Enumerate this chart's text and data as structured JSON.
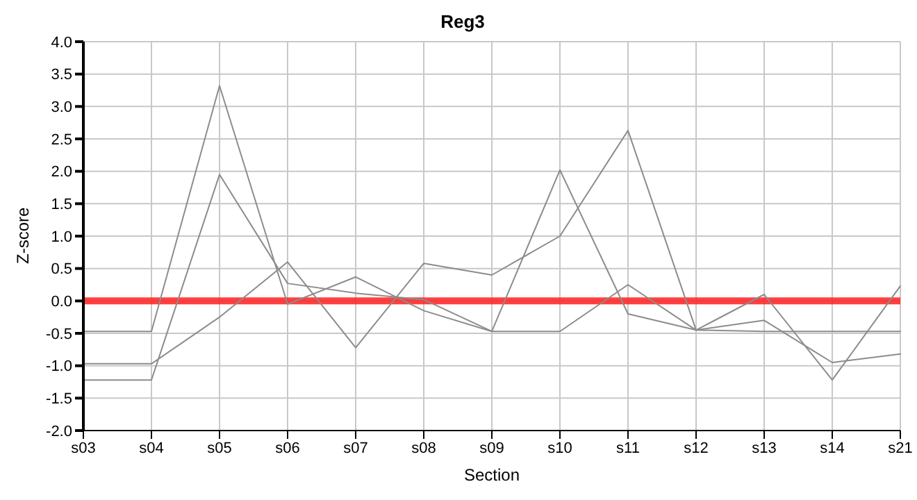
{
  "chart_data": {
    "type": "line",
    "title": "Reg3",
    "xlabel": "Section",
    "ylabel": "Z-score",
    "categories": [
      "s03",
      "s04",
      "s05",
      "s06",
      "s07",
      "s08",
      "s09",
      "s10",
      "s11",
      "s12",
      "s13",
      "s14",
      "s21"
    ],
    "series": [
      {
        "color": "#8c8c8c",
        "values": [
          -0.47,
          -0.47,
          3.32,
          -0.05,
          0.37,
          -0.15,
          -0.47,
          -0.47,
          0.25,
          -0.45,
          -0.47,
          -0.47,
          -0.47
        ]
      },
      {
        "color": "#8c8c8c",
        "values": [
          -1.22,
          -1.22,
          1.95,
          0.27,
          0.12,
          0.02,
          -0.47,
          2.02,
          -0.2,
          -0.45,
          0.1,
          -1.22,
          0.23
        ]
      },
      {
        "color": "#8c8c8c",
        "values": [
          -0.97,
          -0.97,
          -0.25,
          0.6,
          -0.72,
          0.58,
          0.4,
          1.0,
          2.63,
          -0.45,
          -0.3,
          -0.95,
          -0.82
        ]
      }
    ],
    "ylim": [
      -2,
      4
    ],
    "yticks": [
      {
        "value": -2,
        "label": "-2.0"
      },
      {
        "value": -1.5,
        "label": "-1.5"
      },
      {
        "value": -1,
        "label": "-1.0"
      },
      {
        "value": -0.5,
        "label": "-0.5"
      },
      {
        "value": 0,
        "label": "0.0"
      },
      {
        "value": 0.5,
        "label": "0.5"
      },
      {
        "value": 1,
        "label": "1.0"
      },
      {
        "value": 1.5,
        "label": "1.5"
      },
      {
        "value": 2,
        "label": "2.0"
      },
      {
        "value": 2.5,
        "label": "2.5"
      },
      {
        "value": 3,
        "label": "3.0"
      },
      {
        "value": 3.5,
        "label": "3.5"
      },
      {
        "value": 4,
        "label": "4.0"
      }
    ],
    "ref_lines": [
      {
        "axis": "y",
        "value": 0,
        "color": "#ff2020"
      }
    ],
    "grid": true,
    "marker": "none",
    "line_style": "solid"
  }
}
